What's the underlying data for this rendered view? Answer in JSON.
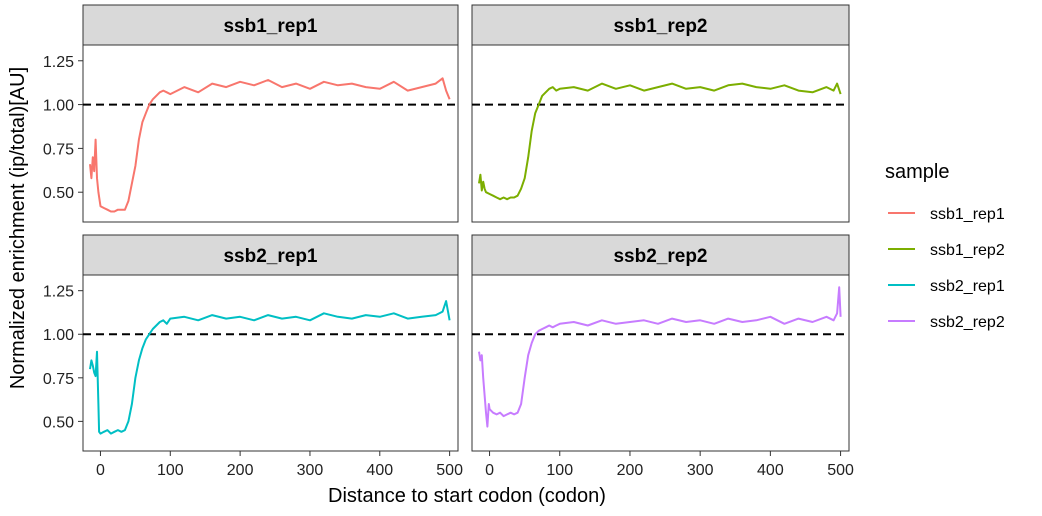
{
  "chart_data": {
    "type": "line",
    "facet_layout": "2x2",
    "xlabel": "Distance to start codon (codon)",
    "ylabel": "Normalized enrichment (ip/total)[AU]",
    "xlim": [
      -25,
      512
    ],
    "ylim": [
      0.33,
      1.34
    ],
    "xticks": [
      0,
      100,
      200,
      300,
      400,
      500
    ],
    "yticks": [
      0.5,
      0.75,
      1.0,
      1.25
    ],
    "ytick_labels": [
      "0.50",
      "0.75",
      "1.00",
      "1.25"
    ],
    "reference_line": {
      "y": 1.0,
      "style": "dashed",
      "color": "#000000"
    },
    "legend": {
      "title": "sample",
      "position": "right"
    },
    "series": [
      {
        "name": "ssb1_rep1",
        "color": "#F8766D",
        "x": [
          -15,
          -13,
          -11,
          -9,
          -7,
          -5,
          -3,
          0,
          5,
          10,
          15,
          20,
          25,
          30,
          35,
          40,
          45,
          50,
          55,
          60,
          65,
          70,
          75,
          80,
          85,
          90,
          95,
          100,
          120,
          140,
          160,
          180,
          200,
          220,
          240,
          260,
          280,
          300,
          320,
          340,
          360,
          380,
          400,
          420,
          440,
          460,
          480,
          490,
          495,
          500
        ],
        "y": [
          0.66,
          0.58,
          0.7,
          0.62,
          0.8,
          0.58,
          0.5,
          0.42,
          0.41,
          0.4,
          0.39,
          0.39,
          0.4,
          0.4,
          0.4,
          0.45,
          0.55,
          0.65,
          0.8,
          0.9,
          0.95,
          1.0,
          1.03,
          1.05,
          1.07,
          1.08,
          1.07,
          1.06,
          1.1,
          1.07,
          1.12,
          1.1,
          1.13,
          1.11,
          1.14,
          1.1,
          1.12,
          1.09,
          1.13,
          1.11,
          1.12,
          1.1,
          1.09,
          1.13,
          1.08,
          1.1,
          1.12,
          1.15,
          1.08,
          1.03
        ]
      },
      {
        "name": "ssb1_rep2",
        "color": "#7CAE00",
        "x": [
          -15,
          -13,
          -11,
          -9,
          -7,
          -5,
          0,
          5,
          10,
          15,
          20,
          25,
          30,
          35,
          40,
          45,
          50,
          55,
          60,
          65,
          70,
          75,
          80,
          85,
          90,
          95,
          100,
          120,
          140,
          160,
          180,
          200,
          220,
          240,
          260,
          280,
          300,
          320,
          340,
          360,
          380,
          400,
          420,
          440,
          460,
          480,
          490,
          495,
          500
        ],
        "y": [
          0.55,
          0.6,
          0.51,
          0.56,
          0.52,
          0.5,
          0.49,
          0.48,
          0.47,
          0.46,
          0.47,
          0.46,
          0.47,
          0.47,
          0.48,
          0.52,
          0.58,
          0.7,
          0.85,
          0.95,
          1.0,
          1.05,
          1.07,
          1.09,
          1.1,
          1.08,
          1.09,
          1.1,
          1.08,
          1.12,
          1.09,
          1.11,
          1.08,
          1.1,
          1.12,
          1.09,
          1.1,
          1.08,
          1.11,
          1.12,
          1.1,
          1.09,
          1.11,
          1.08,
          1.07,
          1.1,
          1.08,
          1.12,
          1.06
        ]
      },
      {
        "name": "ssb2_rep1",
        "color": "#00BFC4",
        "x": [
          -15,
          -13,
          -11,
          -9,
          -7,
          -5,
          -3,
          -2,
          0,
          5,
          10,
          15,
          20,
          25,
          30,
          35,
          40,
          45,
          50,
          55,
          60,
          65,
          70,
          75,
          80,
          85,
          90,
          95,
          100,
          120,
          140,
          160,
          180,
          200,
          220,
          240,
          260,
          280,
          300,
          320,
          340,
          360,
          380,
          400,
          420,
          440,
          460,
          480,
          490,
          495,
          500
        ],
        "y": [
          0.8,
          0.85,
          0.82,
          0.78,
          0.76,
          0.9,
          0.6,
          0.44,
          0.43,
          0.44,
          0.45,
          0.43,
          0.44,
          0.45,
          0.44,
          0.45,
          0.5,
          0.6,
          0.75,
          0.85,
          0.92,
          0.97,
          1.0,
          1.03,
          1.05,
          1.07,
          1.08,
          1.06,
          1.09,
          1.1,
          1.08,
          1.11,
          1.09,
          1.1,
          1.08,
          1.11,
          1.09,
          1.1,
          1.08,
          1.12,
          1.1,
          1.09,
          1.11,
          1.1,
          1.12,
          1.09,
          1.1,
          1.11,
          1.13,
          1.19,
          1.08
        ]
      },
      {
        "name": "ssb2_rep2",
        "color": "#C77CFF",
        "x": [
          -15,
          -13,
          -11,
          -9,
          -7,
          -5,
          -3,
          -1,
          0,
          5,
          10,
          15,
          20,
          25,
          30,
          35,
          40,
          45,
          50,
          55,
          60,
          65,
          70,
          75,
          80,
          85,
          90,
          95,
          100,
          120,
          140,
          160,
          180,
          200,
          220,
          240,
          260,
          280,
          300,
          320,
          340,
          360,
          380,
          400,
          420,
          440,
          460,
          480,
          490,
          495,
          498,
          500
        ],
        "y": [
          0.9,
          0.85,
          0.88,
          0.75,
          0.65,
          0.55,
          0.47,
          0.6,
          0.57,
          0.55,
          0.54,
          0.55,
          0.53,
          0.54,
          0.55,
          0.54,
          0.55,
          0.6,
          0.75,
          0.88,
          0.95,
          1.0,
          1.02,
          1.03,
          1.04,
          1.05,
          1.04,
          1.05,
          1.06,
          1.07,
          1.05,
          1.08,
          1.06,
          1.07,
          1.08,
          1.06,
          1.09,
          1.07,
          1.08,
          1.06,
          1.09,
          1.07,
          1.08,
          1.1,
          1.06,
          1.09,
          1.07,
          1.1,
          1.08,
          1.12,
          1.27,
          1.1
        ]
      }
    ]
  }
}
